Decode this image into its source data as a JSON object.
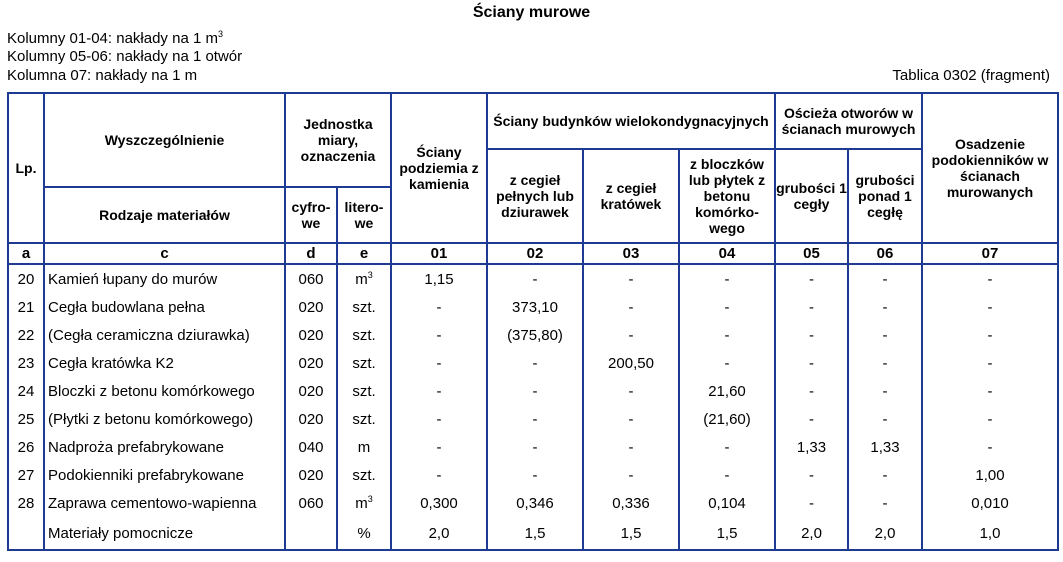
{
  "title": "Ściany murowe",
  "notes": [
    "Kolumny 01-04: nakłady na 1 m",
    "Kolumny 05-06: nakłady na 1 otwór",
    "Kolumna 07: nakłady na 1 m"
  ],
  "note_sup": "3",
  "table_ref": "Tablica 0302 (fragment)",
  "headers": {
    "lp": "Lp.",
    "wyszczegolnienie": "Wyszczególnienie",
    "rodzaje": "Rodzaje materiałów",
    "jednostka": "Jednostka miary, oznaczenia",
    "cyfrowe": "cyfro-we",
    "literowe": "litero-we",
    "podziemia": "Ściany podziemia z kamienia",
    "budynkow": "Ściany budynków wielokondygnacyjnych",
    "cegiel_pelnych": "z cegieł pełnych lub dziurawek",
    "cegiel_kratowek": "z cegieł kratówek",
    "bloczkow": "z bloczków lub płytek z betonu komórko-wego",
    "osciezа": "Ościeża otworów w ścianach murowych",
    "grubosci1": "grubości 1 cegły",
    "grubosci_ponad": "grubości ponad 1 cegłę",
    "osadzenie": "Osadzenie podokienników w ścianach murowanych"
  },
  "index_row": [
    "a",
    "c",
    "d",
    "e",
    "01",
    "02",
    "03",
    "04",
    "05",
    "06",
    "07"
  ],
  "rows": [
    {
      "lp": "20",
      "name": "Kamień łupany do murów",
      "code": "060",
      "unit": "m",
      "unit_sup": "3",
      "v": [
        "1,15",
        "-",
        "-",
        "-",
        "-",
        "-",
        "-"
      ]
    },
    {
      "lp": "21",
      "name": "Cegła budowlana pełna",
      "code": "020",
      "unit": "szt.",
      "unit_sup": "",
      "v": [
        "-",
        "373,10",
        "-",
        "-",
        "-",
        "-",
        "-"
      ]
    },
    {
      "lp": "22",
      "name": "(Cegła ceramiczna dziurawka)",
      "code": "020",
      "unit": "szt.",
      "unit_sup": "",
      "v": [
        "-",
        "(375,80)",
        "-",
        "-",
        "-",
        "-",
        "-"
      ]
    },
    {
      "lp": "23",
      "name": "Cegła kratówka K2",
      "code": "020",
      "unit": "szt.",
      "unit_sup": "",
      "v": [
        "-",
        "-",
        "200,50",
        "-",
        "-",
        "-",
        "-"
      ]
    },
    {
      "lp": "24",
      "name": "Bloczki z betonu komórkowego",
      "code": "020",
      "unit": "szt.",
      "unit_sup": "",
      "v": [
        "-",
        "-",
        "-",
        "21,60",
        "-",
        "-",
        "-"
      ]
    },
    {
      "lp": "25",
      "name": "(Płytki z betonu komórkowego)",
      "code": "020",
      "unit": "szt.",
      "unit_sup": "",
      "v": [
        "-",
        "-",
        "-",
        "(21,60)",
        "-",
        "-",
        "-"
      ]
    },
    {
      "lp": "26",
      "name": "Nadproża prefabrykowane",
      "code": "040",
      "unit": "m",
      "unit_sup": "",
      "v": [
        "-",
        "-",
        "-",
        "-",
        "1,33",
        "1,33",
        "-"
      ]
    },
    {
      "lp": "27",
      "name": "Podokienniki prefabrykowane",
      "code": "020",
      "unit": "szt.",
      "unit_sup": "",
      "v": [
        "-",
        "-",
        "-",
        "-",
        "-",
        "-",
        "1,00"
      ]
    },
    {
      "lp": "28",
      "name": "Zaprawa cementowo-wapienna",
      "code": "060",
      "unit": "m",
      "unit_sup": "3",
      "v": [
        "0,300",
        "0,346",
        "0,336",
        "0,104",
        "-",
        "-",
        "0,010"
      ]
    },
    {
      "lp": "",
      "name": "Materiały pomocnicze",
      "code": "",
      "unit": "%",
      "unit_sup": "",
      "v": [
        "2,0",
        "1,5",
        "1,5",
        "1,5",
        "2,0",
        "2,0",
        "1,0"
      ]
    }
  ]
}
